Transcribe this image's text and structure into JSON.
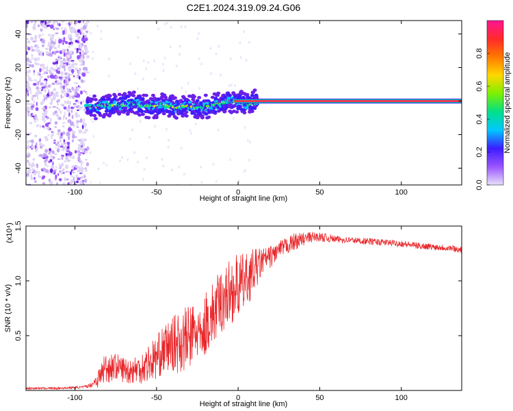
{
  "title": "C2E1.2024.319.09.24.G06",
  "chart_data": [
    {
      "type": "heatmap",
      "xlabel": "Height of straight line (km)",
      "ylabel": "Frequency (Hz)",
      "xlim": [
        -130,
        137
      ],
      "ylim": [
        -50,
        48
      ],
      "xticks": [
        -100,
        -50,
        0,
        50,
        100
      ],
      "yticks": [
        -40,
        -20,
        0,
        20,
        40
      ],
      "colorbar": {
        "label": "Normalized spectral amplitude",
        "range": [
          0,
          1
        ],
        "ticks": [
          0.0,
          0.2,
          0.4,
          0.6,
          0.8
        ],
        "colors": [
          "#e6e0f8",
          "#9a55ff",
          "#3c1cff",
          "#00c8ff",
          "#00e08a",
          "#7cf000",
          "#ffd800",
          "#ff7a00",
          "#ff2a2a",
          "#ff1493"
        ]
      },
      "ridge": {
        "name": "frequency track",
        "x": [
          -93,
          -88,
          -84,
          -80,
          -75,
          -70,
          -66,
          -62,
          -58,
          -54,
          -50,
          -46,
          -42,
          -38,
          -34,
          -30,
          -26,
          -22,
          -18,
          -14,
          -10,
          -6,
          -3,
          0,
          3,
          6,
          9,
          12,
          137
        ],
        "y": [
          -3,
          -4,
          -3,
          -2,
          -3,
          -2,
          -1,
          -2,
          -3,
          -3,
          -3,
          -2,
          -3,
          -4,
          -3,
          -3,
          -4,
          -4,
          -3,
          -2,
          -1,
          0,
          0,
          0,
          -1,
          -2,
          -1,
          0,
          0
        ]
      },
      "noise_region_x": [
        -130,
        -92
      ]
    },
    {
      "type": "line",
      "xlabel": "Height of straight line (km)",
      "ylabel": "SNR (10 * v/v)",
      "yscale_label": "(x10⁴)",
      "xlim": [
        -130,
        137
      ],
      "ylim": [
        0,
        1.5
      ],
      "xticks": [
        -100,
        -50,
        0,
        50,
        100
      ],
      "yticks": [
        0.5,
        1.0,
        1.5
      ],
      "ytick_labels": [
        "0.5",
        "1.0",
        "1.5"
      ],
      "series": [
        {
          "color": "#e8262a",
          "x": [
            -130,
            -110,
            -95,
            -90,
            -85,
            -82,
            -75,
            -68,
            -60,
            -55,
            -50,
            -45,
            -40,
            -35,
            -30,
            -25,
            -22,
            -20,
            -15,
            -10,
            -5,
            0,
            5,
            10,
            15,
            20,
            25,
            30,
            35,
            40,
            45,
            50,
            55,
            60,
            70,
            80,
            90,
            100,
            110,
            120,
            130,
            137
          ],
          "y": [
            0.02,
            0.02,
            0.03,
            0.05,
            0.12,
            0.2,
            0.22,
            0.18,
            0.2,
            0.25,
            0.3,
            0.38,
            0.42,
            0.45,
            0.48,
            0.55,
            0.45,
            0.62,
            0.7,
            0.82,
            0.9,
            0.95,
            1.0,
            1.1,
            1.18,
            1.22,
            1.28,
            1.32,
            1.36,
            1.38,
            1.4,
            1.4,
            1.39,
            1.38,
            1.37,
            1.36,
            1.35,
            1.34,
            1.32,
            1.31,
            1.3,
            1.28
          ],
          "noise_amplitude": [
            0.01,
            0.01,
            0.01,
            0.02,
            0.1,
            0.15,
            0.12,
            0.12,
            0.14,
            0.18,
            0.2,
            0.22,
            0.25,
            0.3,
            0.3,
            0.3,
            0.15,
            0.3,
            0.3,
            0.3,
            0.3,
            0.3,
            0.25,
            0.2,
            0.12,
            0.1,
            0.08,
            0.08,
            0.08,
            0.06,
            0.05,
            0.04,
            0.04,
            0.03,
            0.03,
            0.03,
            0.03,
            0.03,
            0.03,
            0.03,
            0.03,
            0.03
          ]
        }
      ]
    }
  ]
}
